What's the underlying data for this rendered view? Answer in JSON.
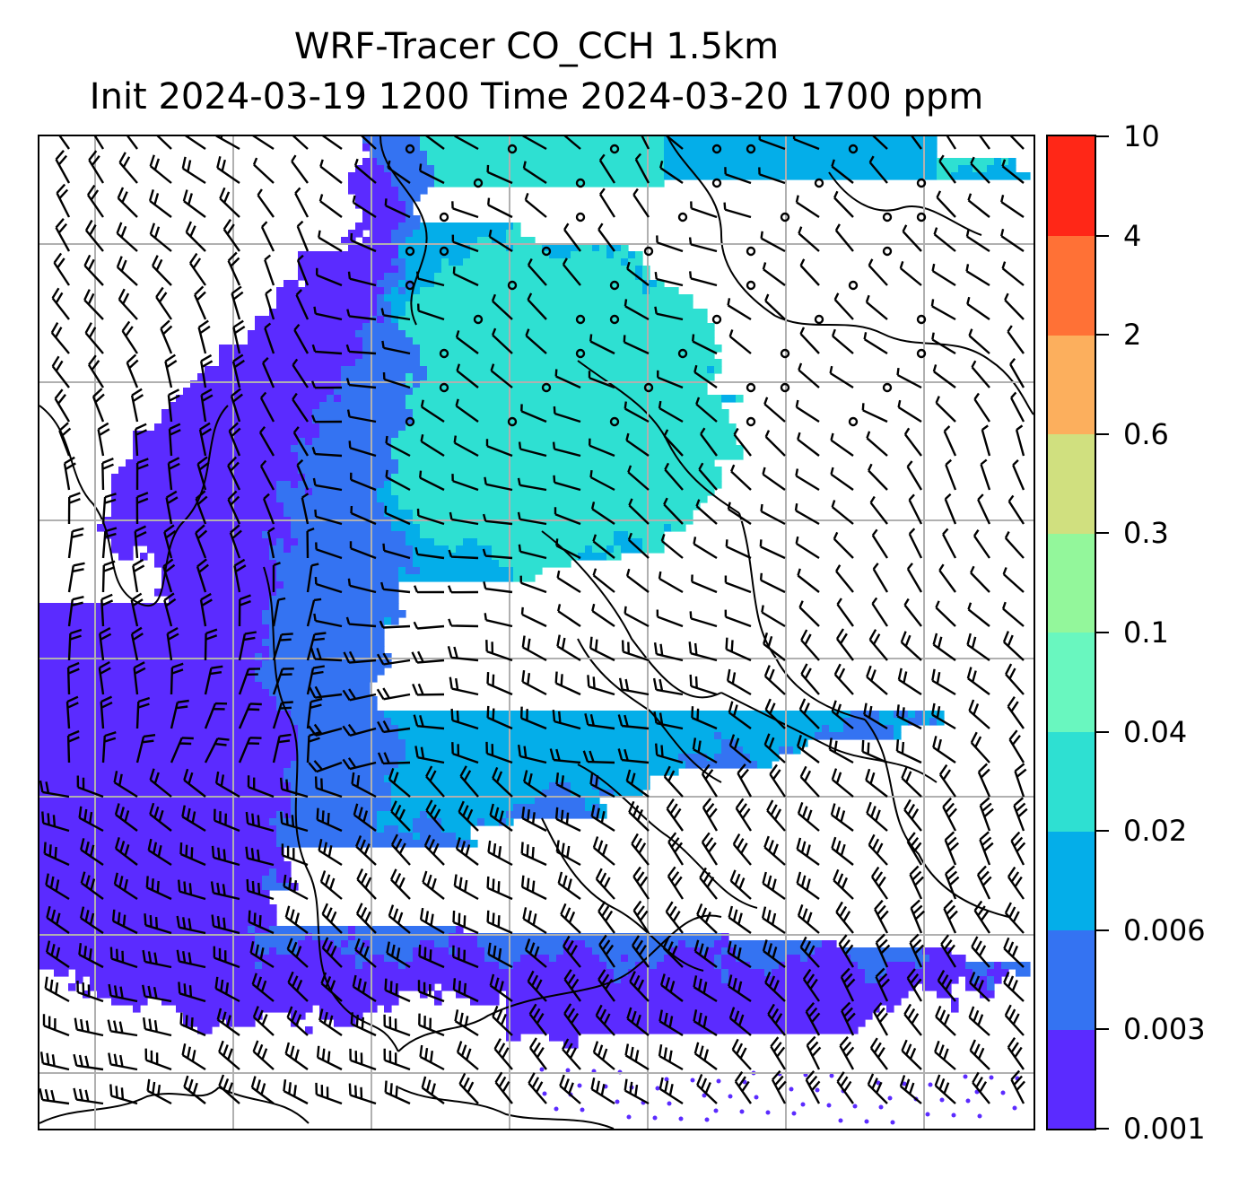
{
  "title": {
    "line1": "WRF-Tracer CO_CCH 1.5km",
    "line2": "Init 2024-03-19 1200 Time 2024-03-20 1700 ppm"
  },
  "colorbar": {
    "levels": [
      "0.001",
      "0.003",
      "0.006",
      "0.02",
      "0.04",
      "0.1",
      "0.3",
      "0.6",
      "2",
      "4",
      "10"
    ],
    "colors": [
      "#5b2bff",
      "#3473f2",
      "#04aee9",
      "#2ee0d2",
      "#69f7bf",
      "#93f79b",
      "#d0e07f",
      "#fcaf5d",
      "#ff7136",
      "#ff2717"
    ]
  },
  "map": {
    "gridlines": true,
    "gridline_color": "#b0b0b0",
    "wind_barbs": true,
    "calm_circles": true
  }
}
